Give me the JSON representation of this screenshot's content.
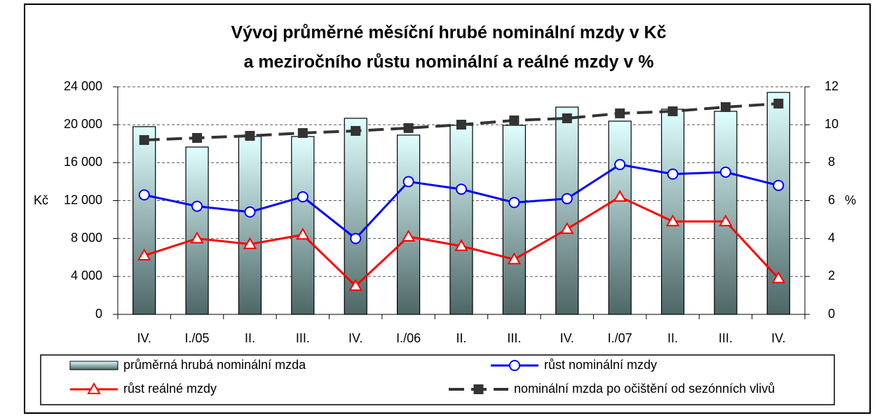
{
  "chart_data": {
    "type": "bar-line",
    "title": [
      "Vývoj průměrné měsíční hrubé nominální mzdy v Kč",
      "a meziročního růstu nominální a reálné mzdy v %"
    ],
    "ylabel": "Kč",
    "y2label": "%",
    "categories": [
      "IV.",
      "I./05",
      "II.",
      "III.",
      "IV.",
      "I./06",
      "II.",
      "III.",
      "IV.",
      "I./07",
      "II.",
      "III.",
      "IV."
    ],
    "ylim": [
      0,
      24000
    ],
    "yticks": [
      {
        "value": 0,
        "label": "0"
      },
      {
        "value": 4000,
        "label": "4 000"
      },
      {
        "value": 8000,
        "label": "8 000"
      },
      {
        "value": 12000,
        "label": "12 000"
      },
      {
        "value": 16000,
        "label": "16 000"
      },
      {
        "value": 20000,
        "label": "20 000"
      },
      {
        "value": 24000,
        "label": "24 000"
      }
    ],
    "y2lim": [
      0,
      12
    ],
    "y2ticks": [
      0,
      2,
      4,
      6,
      8,
      10,
      12
    ],
    "grid": true,
    "series": [
      {
        "name": "průměrná hrubá nominální mzda",
        "type": "bar",
        "color": "#e0ffff",
        "values": [
          19800,
          17650,
          18760,
          18760,
          20680,
          18910,
          19940,
          19940,
          21860,
          20380,
          21640,
          21420,
          23410
        ]
      },
      {
        "name": "růst nominální mzdy",
        "type": "line",
        "axis": "y2",
        "color": "#0000ff",
        "marker": "circle",
        "values": [
          6.3,
          5.7,
          5.4,
          6.2,
          4.0,
          7.0,
          6.6,
          5.9,
          6.1,
          7.9,
          7.4,
          7.5,
          6.8
        ]
      },
      {
        "name": "růst reálné mzdy",
        "type": "line",
        "axis": "y2",
        "color": "#ff0000",
        "marker": "triangle",
        "values": [
          3.1,
          4.0,
          3.7,
          4.2,
          1.5,
          4.1,
          3.6,
          2.9,
          4.5,
          6.2,
          4.9,
          4.9,
          1.9
        ]
      },
      {
        "name": "nominální mzda po očištění od sezónních vlivů",
        "type": "line",
        "color": "#333333",
        "marker": "square",
        "dashed": true,
        "values": [
          18390,
          18610,
          18830,
          19130,
          19350,
          19650,
          20010,
          20460,
          20680,
          21200,
          21420,
          21860,
          22230
        ]
      }
    ]
  }
}
